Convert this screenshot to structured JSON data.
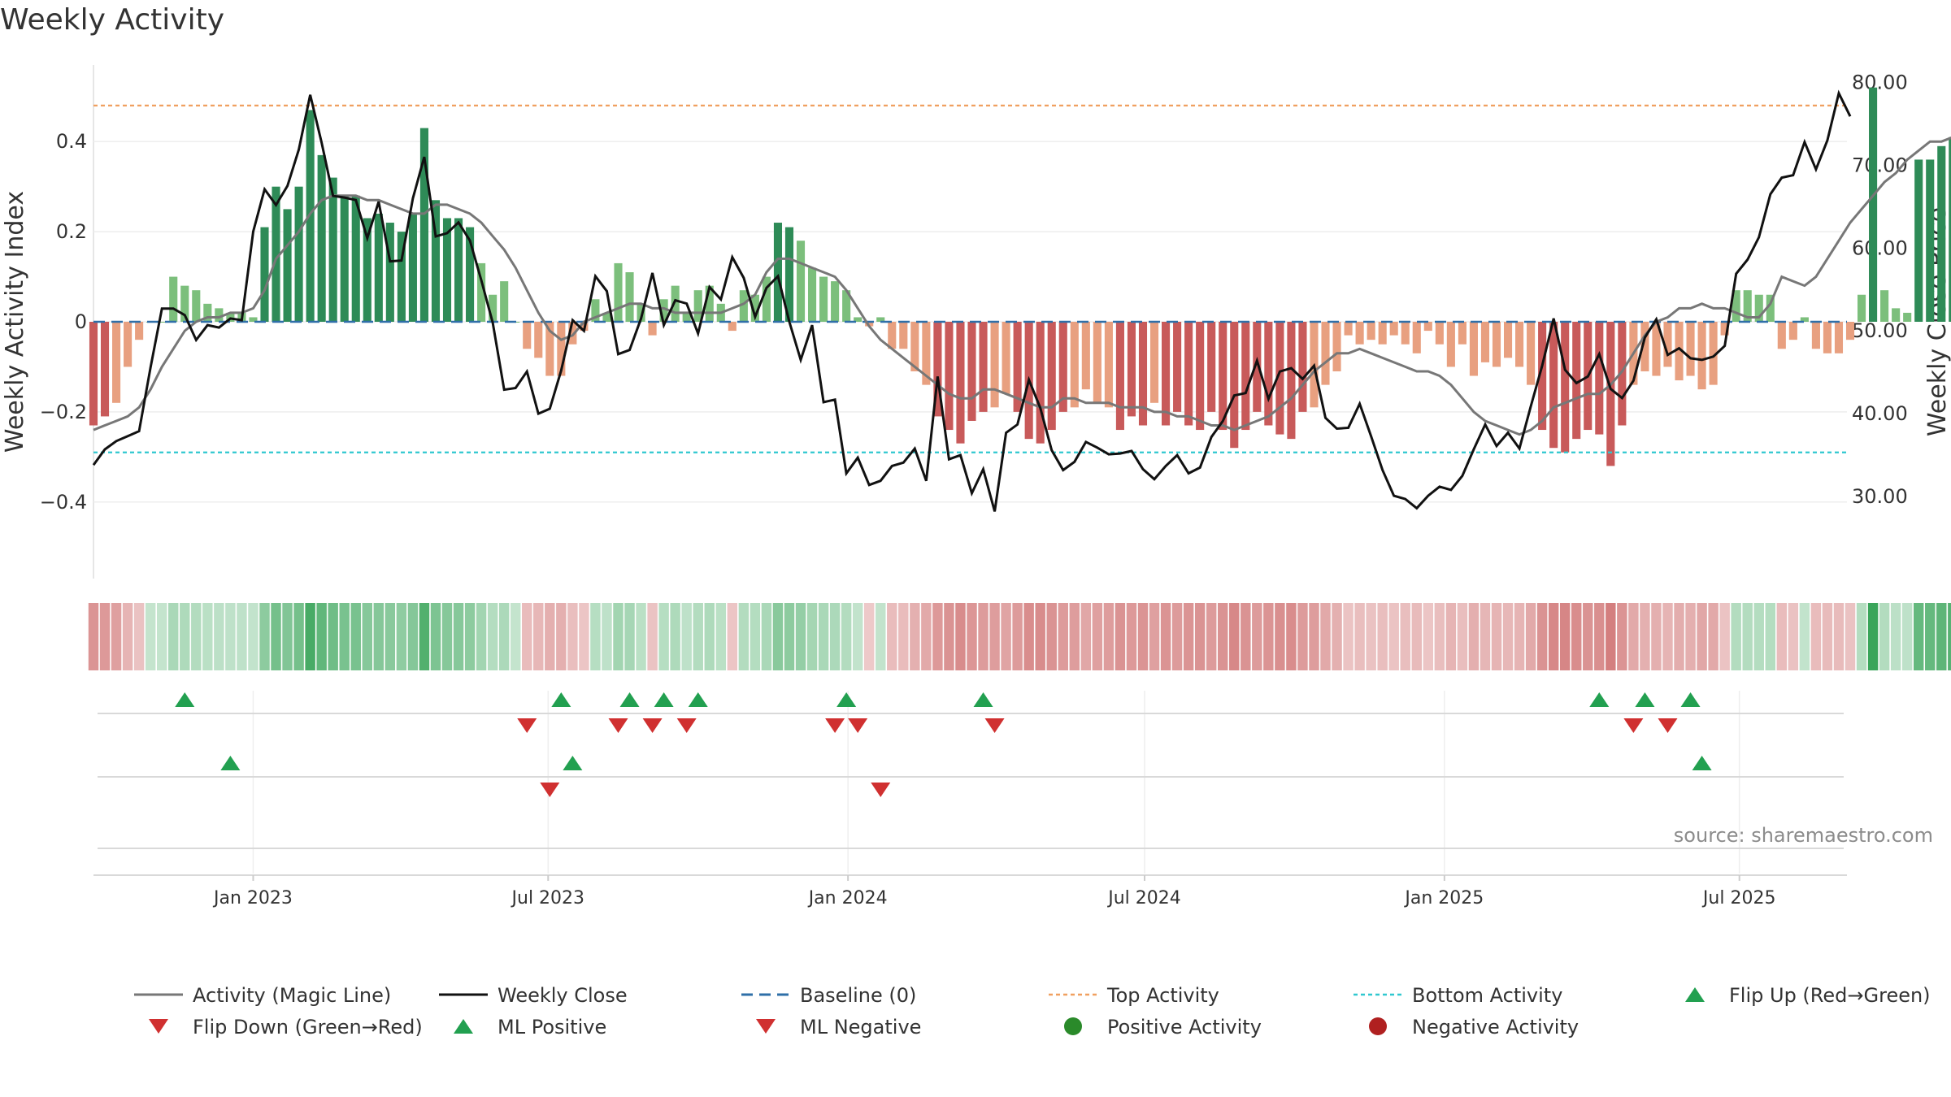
{
  "title": "Weekly Activity",
  "source": "source: sharemaestro.com",
  "colors": {
    "pos_dark": "#2e8b57",
    "pos_light": "#7cbf7c",
    "neg_dark": "#c85a5a",
    "neg_light": "#e8a080",
    "magic": "#777777",
    "close": "#111111",
    "baseline": "#2f6fa8",
    "top": "#f0a060",
    "bottom": "#30c8d0",
    "up_marker": "#22a050",
    "down_marker": "#d03030"
  },
  "chart_data": {
    "type": "bar",
    "title": "Weekly Activity",
    "ylabel": "Weekly Activity Index",
    "y2label": "Weekly Close Price",
    "ylim": [
      -0.57,
      0.57
    ],
    "y2lim": [
      20,
      82
    ],
    "yticks": [
      -0.4,
      -0.2,
      0.0,
      0.2,
      0.4
    ],
    "ytick_labels": [
      "−0.4",
      "−0.2",
      "0",
      "0.2",
      "0.4"
    ],
    "y2ticks": [
      30,
      40,
      50,
      60,
      70,
      80
    ],
    "y2tick_labels": [
      "30.00",
      "40.00",
      "50.00",
      "60.00",
      "70.00",
      "80.00"
    ],
    "x_range": [
      "2022-09-25",
      "2025-09-05"
    ],
    "xticks": [
      {
        "date": "2023-01-01",
        "label": "Jan 2023"
      },
      {
        "date": "2023-07-01",
        "label": "Jul 2023"
      },
      {
        "date": "2024-01-01",
        "label": "Jan 2024"
      },
      {
        "date": "2024-07-01",
        "label": "Jul 2024"
      },
      {
        "date": "2025-01-01",
        "label": "Jan 2025"
      },
      {
        "date": "2025-07-01",
        "label": "Jul 2025"
      }
    ],
    "start_date": "2022-09-25",
    "activity_first_week": "2022-09-25",
    "top_activity": 0.48,
    "bottom_activity": -0.29,
    "baseline": 0,
    "activity": [
      -0.23,
      -0.21,
      -0.18,
      -0.1,
      -0.04,
      0,
      0,
      0.1,
      0.08,
      0.07,
      0.04,
      0.03,
      0.02,
      0.02,
      0.01,
      0.21,
      0.3,
      0.25,
      0.3,
      0.47,
      0.37,
      0.32,
      0.28,
      0.28,
      0.23,
      0.24,
      0.22,
      0.2,
      0.24,
      0.43,
      0.27,
      0.23,
      0.23,
      0.21,
      0.13,
      0.06,
      0.09,
      0,
      -0.06,
      -0.08,
      -0.12,
      -0.12,
      -0.05,
      -0.02,
      0.05,
      0.02,
      0.13,
      0.11,
      0.04,
      -0.03,
      0.05,
      0.08,
      0.02,
      0.07,
      0.08,
      0.04,
      -0.02,
      0.07,
      0.06,
      0.1,
      0.22,
      0.21,
      0.18,
      0.12,
      0.1,
      0.09,
      0.07,
      0.01,
      -0.01,
      0.01,
      -0.06,
      -0.06,
      -0.11,
      -0.14,
      -0.21,
      -0.24,
      -0.27,
      -0.22,
      -0.2,
      -0.19,
      -0.16,
      -0.2,
      -0.26,
      -0.27,
      -0.24,
      -0.2,
      -0.19,
      -0.15,
      -0.18,
      -0.19,
      -0.24,
      -0.21,
      -0.23,
      -0.18,
      -0.23,
      -0.2,
      -0.23,
      -0.24,
      -0.2,
      -0.24,
      -0.28,
      -0.24,
      -0.2,
      -0.23,
      -0.25,
      -0.26,
      -0.2,
      -0.19,
      -0.14,
      -0.11,
      -0.03,
      -0.05,
      -0.04,
      -0.05,
      -0.03,
      -0.05,
      -0.07,
      -0.02,
      -0.05,
      -0.1,
      -0.05,
      -0.12,
      -0.09,
      -0.1,
      -0.08,
      -0.1,
      -0.14,
      -0.24,
      -0.28,
      -0.29,
      -0.26,
      -0.24,
      -0.25,
      -0.32,
      -0.23,
      -0.14,
      -0.11,
      -0.12,
      -0.1,
      -0.13,
      -0.12,
      -0.15,
      -0.14,
      -0.03,
      0.07,
      0.07,
      0.06,
      0.06,
      -0.06,
      -0.04,
      0.01,
      -0.06,
      -0.07,
      -0.07,
      -0.04,
      0.06,
      0.52,
      0.07,
      0.03,
      0.02,
      0.36,
      0.36,
      0.39,
      0.41,
      0.42,
      0.41,
      0.4,
      0.45,
      0.41,
      0.35,
      0.32,
      0.32,
      0.3
    ],
    "magic_line": [
      -0.24,
      -0.23,
      -0.22,
      -0.21,
      -0.19,
      -0.15,
      -0.1,
      -0.06,
      -0.02,
      0.0,
      0.01,
      0.01,
      0.02,
      0.02,
      0.03,
      0.07,
      0.14,
      0.17,
      0.2,
      0.24,
      0.27,
      0.28,
      0.28,
      0.28,
      0.27,
      0.27,
      0.26,
      0.25,
      0.24,
      0.24,
      0.26,
      0.26,
      0.25,
      0.24,
      0.22,
      0.19,
      0.16,
      0.12,
      0.07,
      0.02,
      -0.02,
      -0.04,
      -0.03,
      0.0,
      0.01,
      0.02,
      0.03,
      0.04,
      0.04,
      0.03,
      0.03,
      0.02,
      0.02,
      0.02,
      0.02,
      0.02,
      0.03,
      0.04,
      0.06,
      0.11,
      0.14,
      0.14,
      0.13,
      0.12,
      0.11,
      0.1,
      0.07,
      0.03,
      -0.01,
      -0.04,
      -0.06,
      -0.08,
      -0.1,
      -0.12,
      -0.14,
      -0.16,
      -0.17,
      -0.17,
      -0.15,
      -0.15,
      -0.16,
      -0.17,
      -0.18,
      -0.19,
      -0.19,
      -0.17,
      -0.17,
      -0.18,
      -0.18,
      -0.18,
      -0.19,
      -0.19,
      -0.19,
      -0.2,
      -0.2,
      -0.21,
      -0.21,
      -0.22,
      -0.23,
      -0.23,
      -0.24,
      -0.23,
      -0.22,
      -0.21,
      -0.19,
      -0.17,
      -0.14,
      -0.11,
      -0.09,
      -0.07,
      -0.07,
      -0.06,
      -0.07,
      -0.08,
      -0.09,
      -0.1,
      -0.11,
      -0.11,
      -0.12,
      -0.14,
      -0.17,
      -0.2,
      -0.22,
      -0.23,
      -0.24,
      -0.25,
      -0.24,
      -0.22,
      -0.19,
      -0.18,
      -0.17,
      -0.16,
      -0.16,
      -0.14,
      -0.11,
      -0.07,
      -0.03,
      0.0,
      0.01,
      0.03,
      0.03,
      0.04,
      0.03,
      0.03,
      0.02,
      0.01,
      0.01,
      0.04,
      0.1,
      0.09,
      0.08,
      0.1,
      0.14,
      0.18,
      0.22,
      0.25,
      0.28,
      0.31,
      0.33,
      0.36,
      0.38,
      0.4,
      0.4,
      0.41,
      0.4
    ],
    "weekly_close": [
      33.7,
      35.6,
      36.6,
      37.2,
      37.8,
      45.5,
      52.6,
      52.6,
      51.8,
      48.8,
      50.6,
      50.3,
      51.4,
      51.2,
      61.9,
      67.0,
      65.1,
      67.4,
      71.8,
      78.4,
      72.6,
      66.2,
      66.0,
      65.7,
      61.1,
      65.5,
      58.3,
      58.4,
      65.9,
      70.9,
      61.3,
      61.7,
      63.0,
      60.8,
      56.0,
      50.9,
      42.8,
      43.0,
      45.0,
      39.9,
      40.5,
      45.1,
      51.2,
      49.9,
      56.5,
      54.7,
      47.1,
      47.6,
      51.4,
      56.9,
      50.6,
      53.6,
      53.2,
      49.6,
      55.2,
      53.7,
      58.8,
      56.3,
      51.6,
      55.1,
      56.5,
      51.0,
      46.4,
      50.6,
      41.3,
      41.6,
      32.7,
      34.6,
      31.3,
      31.8,
      33.6,
      34.0,
      35.7,
      31.8,
      44.4,
      34.4,
      34.9,
      30.3,
      33.2,
      28.1,
      37.6,
      38.6,
      44.0,
      40.6,
      35.5,
      33.1,
      34.1,
      36.5,
      35.8,
      35.0,
      35.1,
      35.4,
      33.2,
      32.0,
      33.6,
      34.9,
      32.7,
      33.4,
      37.1,
      39.0,
      42.1,
      42.4,
      46.3,
      41.7,
      45.0,
      45.4,
      44.1,
      45.7,
      39.4,
      38.1,
      38.2,
      41.1,
      37.2,
      33.1,
      30.0,
      29.6,
      28.5,
      30.0,
      31.1,
      30.7,
      32.4,
      35.6,
      38.6,
      36.0,
      37.6,
      35.7,
      40.8,
      45.7,
      51.4,
      45.2,
      43.6,
      44.4,
      47.1,
      42.9,
      41.8,
      43.9,
      49.1,
      51.3,
      47.0,
      47.8,
      46.6,
      46.4,
      46.8,
      48.1,
      56.8,
      58.5,
      61.2,
      66.4,
      68.4,
      68.7,
      72.7,
      69.4,
      72.9,
      78.6,
      75.8
    ],
    "flip_up_a": [
      "2022-11-20",
      "2023-07-09",
      "2023-08-20",
      "2023-09-10",
      "2023-10-01",
      "2023-12-31",
      "2024-03-24",
      "2025-04-06",
      "2025-05-04",
      "2025-06-01"
    ],
    "flip_down_a": [
      "2023-06-18",
      "2023-08-13",
      "2023-09-03",
      "2023-09-24",
      "2023-12-24",
      "2024-01-07",
      "2024-03-31",
      "2025-04-27",
      "2025-05-18"
    ],
    "flip_up_b": [
      "2022-12-18",
      "2023-07-16",
      "2025-06-08"
    ],
    "flip_down_b": [
      "2023-07-02",
      "2024-01-21"
    ],
    "legend": [
      {
        "label": "Activity (Magic Line)",
        "symbol": "line",
        "color": "#777777"
      },
      {
        "label": "Weekly Close",
        "symbol": "line",
        "color": "#111111"
      },
      {
        "label": "Baseline (0)",
        "symbol": "dash",
        "color": "#2f6fa8"
      },
      {
        "label": "Top Activity",
        "symbol": "dot",
        "color": "#f0a060"
      },
      {
        "label": "Bottom Activity",
        "symbol": "dot",
        "color": "#30c8d0"
      },
      {
        "label": "Flip Up (Red→Green)",
        "symbol": "tri-up",
        "color": "#22a050"
      },
      {
        "label": "Flip Down (Green→Red)",
        "symbol": "tri-down",
        "color": "#d03030"
      },
      {
        "label": "ML Positive",
        "symbol": "tri-up",
        "color": "#22a050"
      },
      {
        "label": "ML Negative",
        "symbol": "tri-down",
        "color": "#d03030"
      },
      {
        "label": "Positive Activity",
        "symbol": "circle",
        "color": "#2a8a2a"
      },
      {
        "label": "Negative Activity",
        "symbol": "circle",
        "color": "#b02020"
      }
    ],
    "legend_placement": "bottom",
    "grid": true
  }
}
